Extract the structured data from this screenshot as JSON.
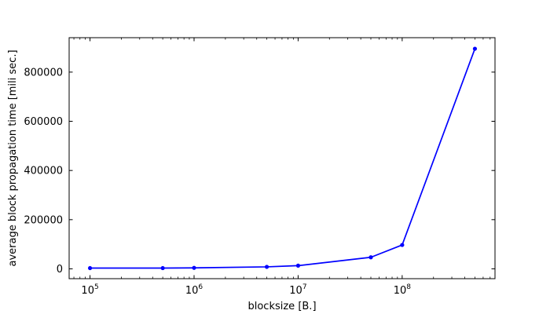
{
  "chart_data": {
    "type": "line",
    "title": "",
    "xlabel": "blocksize [B.]",
    "ylabel": "average block propagation time [mili sec.]",
    "xscale": "log",
    "yscale": "linear",
    "xlim": [
      63000,
      780000000
    ],
    "ylim": [
      -40000,
      940000
    ],
    "x_ticks": [
      {
        "value": 100000,
        "base": "10",
        "exp": "5"
      },
      {
        "value": 1000000,
        "base": "10",
        "exp": "6"
      },
      {
        "value": 10000000,
        "base": "10",
        "exp": "7"
      },
      {
        "value": 100000000,
        "base": "10",
        "exp": "8"
      }
    ],
    "y_ticks": [
      {
        "value": 0,
        "label": "0"
      },
      {
        "value": 200000,
        "label": "200000"
      },
      {
        "value": 400000,
        "label": "400000"
      },
      {
        "value": 600000,
        "label": "600000"
      },
      {
        "value": 800000,
        "label": "800000"
      }
    ],
    "series": [
      {
        "color": "#0000ff",
        "x": [
          100000,
          500000,
          1000000,
          5000000,
          10000000,
          50000000,
          100000000,
          500000000
        ],
        "y": [
          3000,
          3000,
          4000,
          8000,
          13000,
          47000,
          97000,
          895000
        ]
      }
    ],
    "grid": false,
    "legend": "none"
  }
}
